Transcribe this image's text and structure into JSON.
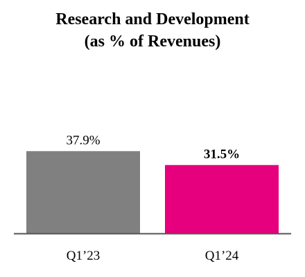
{
  "chart_data": {
    "type": "bar",
    "title_line1": "Research and Development",
    "title_line2": "(as % of Revenues)",
    "categories": [
      "Q1’23",
      "Q1’24"
    ],
    "values": [
      37.9,
      31.5
    ],
    "value_labels": [
      "37.9%",
      "31.5%"
    ],
    "value_label_bold": [
      false,
      true
    ],
    "colors": [
      "#808080",
      "#e6007e"
    ],
    "ylim": [
      0,
      45
    ],
    "grid": false,
    "legend": "none",
    "xlabel": "",
    "ylabel": ""
  }
}
